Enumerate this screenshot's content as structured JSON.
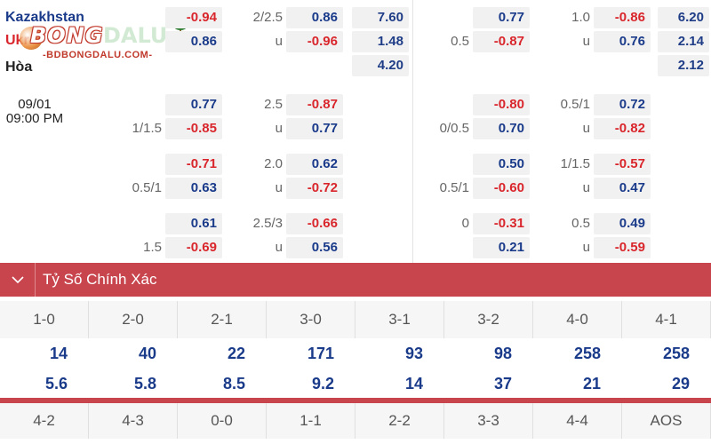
{
  "match": {
    "home": "Kazakhstan",
    "away": "Ukraine",
    "away_visible": "Ukr",
    "draw_label": "Hòa",
    "date": "09/01",
    "time": "09:00 PM"
  },
  "logo": {
    "brand": "BONG DALU",
    "brand_part1": "BONG",
    "brand_part2": "DALU",
    "domain": "-BDBONGDALU.COM-"
  },
  "odds_rows": [
    {
      "ft_hdp_line": "",
      "ft_hdp": [
        "-0.94",
        "0.86"
      ],
      "ft_ou_line": [
        "2/2.5",
        "u"
      ],
      "ft_ou": [
        "0.86",
        "-0.96"
      ],
      "ft_1x2": [
        "7.60",
        "1.48",
        "4.20"
      ],
      "h1_hdp_line": "0.5",
      "h1_hdp": [
        "0.77",
        "-0.87"
      ],
      "h1_ou_line": [
        "1.0",
        "u"
      ],
      "h1_ou": [
        "-0.86",
        "0.76"
      ],
      "h1_1x2": [
        "6.20",
        "2.14",
        "2.12"
      ]
    },
    {
      "ft_hdp_line": "1/1.5",
      "ft_hdp": [
        "0.77",
        "-0.85"
      ],
      "ft_ou_line": [
        "2.5",
        "u"
      ],
      "ft_ou": [
        "-0.87",
        "0.77"
      ],
      "h1_hdp_line": "0/0.5",
      "h1_hdp": [
        "-0.80",
        "0.70"
      ],
      "h1_ou_line": [
        "0.5/1",
        "u"
      ],
      "h1_ou": [
        "0.72",
        "-0.82"
      ]
    },
    {
      "ft_hdp_line": "0.5/1",
      "ft_hdp": [
        "-0.71",
        "0.63"
      ],
      "ft_ou_line": [
        "2.0",
        "u"
      ],
      "ft_ou": [
        "0.62",
        "-0.72"
      ],
      "h1_hdp_line": "0.5/1",
      "h1_hdp": [
        "0.50",
        "-0.60"
      ],
      "h1_ou_line": [
        "1/1.5",
        "u"
      ],
      "h1_ou": [
        "-0.57",
        "0.47"
      ]
    },
    {
      "ft_hdp_line": "1.5",
      "ft_hdp": [
        "0.61",
        "-0.69"
      ],
      "ft_ou_line": [
        "2.5/3",
        "u"
      ],
      "ft_ou": [
        "-0.66",
        "0.56"
      ],
      "h1_hdp_line": "0",
      "h1_hdp": [
        "-0.31",
        "0.21"
      ],
      "h1_ou_line": [
        "0.5",
        "u"
      ],
      "h1_ou": [
        "0.49",
        "-0.59"
      ]
    }
  ],
  "exact_score": {
    "title": "Tỷ Số Chính Xác",
    "scores_row1": [
      "1-0",
      "2-0",
      "2-1",
      "3-0",
      "3-1",
      "3-2",
      "4-0",
      "4-1"
    ],
    "odds_a": [
      "14",
      "40",
      "22",
      "171",
      "93",
      "98",
      "258",
      "258"
    ],
    "odds_b": [
      "5.6",
      "5.8",
      "8.5",
      "9.2",
      "14",
      "37",
      "21",
      "29"
    ],
    "scores_row2": [
      "4-2",
      "4-3",
      "0-0",
      "1-1",
      "2-2",
      "3-3",
      "4-4",
      "AOS"
    ]
  },
  "colors": {
    "header_red": "#c8454e",
    "negative": "#d9262c",
    "positive": "#1a3a8a"
  }
}
